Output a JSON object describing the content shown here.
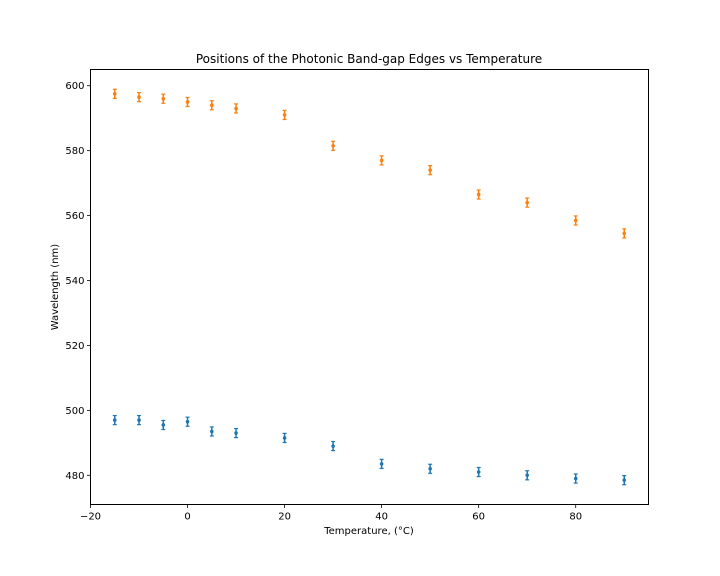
{
  "chart_data": {
    "type": "scatter",
    "title": "Positions of the Photonic Band-gap Edges vs Temperature",
    "xlabel": "Temperature, (°C)",
    "ylabel": "Wavelength (nm)",
    "xlim": [
      -20,
      95
    ],
    "ylim": [
      471,
      605
    ],
    "xticks": [
      -20,
      0,
      20,
      40,
      60,
      80
    ],
    "xtick_labels": [
      "−20",
      "0",
      "20",
      "40",
      "60",
      "80"
    ],
    "yticks": [
      480,
      500,
      520,
      540,
      560,
      580,
      600
    ],
    "ytick_labels": [
      "480",
      "500",
      "520",
      "540",
      "560",
      "580",
      "600"
    ],
    "grid": false,
    "x": [
      -15,
      -10,
      -5,
      0,
      5,
      10,
      20,
      30,
      40,
      50,
      60,
      70,
      80,
      90
    ],
    "series": [
      {
        "color": "#1f77b4",
        "values": [
          497,
          497,
          495.5,
          496.5,
          493.5,
          493,
          491.5,
          489,
          483.5,
          482,
          481,
          480,
          479,
          478.5
        ],
        "error": 1.4
      },
      {
        "color": "#ff7f0e",
        "values": [
          597.5,
          596.5,
          596,
          595,
          594,
          593,
          591,
          581.5,
          577,
          574,
          566.5,
          564,
          558.5,
          554.5
        ],
        "error": 1.4
      }
    ]
  }
}
